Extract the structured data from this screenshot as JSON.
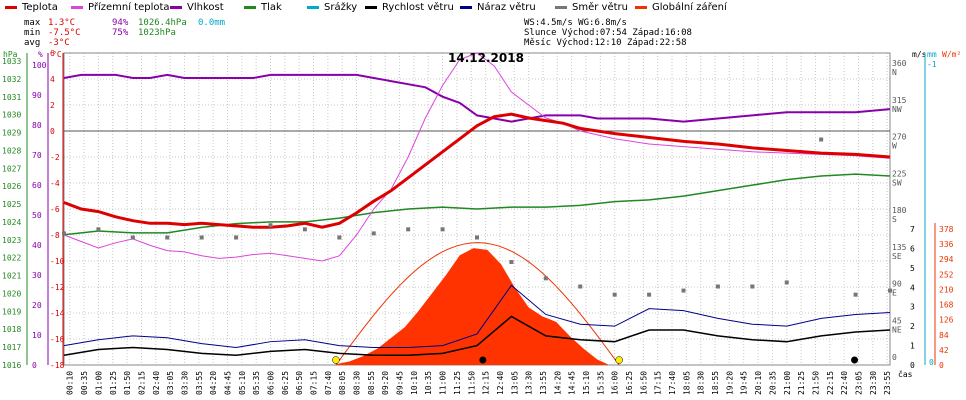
{
  "legend": [
    {
      "label": "Teplota",
      "color": "#dd0000"
    },
    {
      "label": "Přízemní teplota",
      "color": "#dd44dd"
    },
    {
      "label": "Vlhkost",
      "color": "#8800aa"
    },
    {
      "label": "Tlak",
      "color": "#228822"
    },
    {
      "label": "Srážky",
      "color": "#00aacc"
    },
    {
      "label": "Rychlost větru",
      "color": "#000000"
    },
    {
      "label": "Náraz větru",
      "color": "#000088"
    },
    {
      "label": "Směr větru",
      "color": "#777777"
    },
    {
      "label": "Globální záření",
      "color": "#ee3300"
    }
  ],
  "stats": {
    "max": {
      "label": "max",
      "temp": "1.3°C",
      "hum": "94%",
      "press": "1026.4hPa",
      "rain": "0.0mm"
    },
    "min": {
      "label": "min",
      "temp": "-7.5°C",
      "hum": "75%",
      "press": "1023hPa"
    },
    "avg": {
      "label": "avg",
      "temp": "-3°C"
    }
  },
  "sun": {
    "line1": "WS:4.5m/s   WG:6.8m/s",
    "line2": "Slunce Východ:07:54  Západ:16:08",
    "line3": "Měsíc  Východ:12:10  Západ:22:58"
  },
  "date": "14.12.2018",
  "axes": {
    "hpa_title": "hPa",
    "pct_title": "%",
    "c_title": "°C",
    "dir_title": "m/s",
    "mm_title": "mm",
    "wm_title": "W/m²",
    "hpa_ticks": [
      "1033",
      "1032",
      "1031",
      "1030",
      "1029",
      "1028",
      "1027",
      "1026",
      "1025",
      "1024",
      "1023",
      "1022",
      "1021",
      "1020",
      "1019",
      "1018",
      "1017",
      "1016"
    ],
    "pct_ticks": [
      "100",
      "90",
      "80",
      "70",
      "60",
      "50",
      "40",
      "30",
      "20",
      "10",
      "0"
    ],
    "c_ticks": [
      "6",
      "4",
      "2",
      "0",
      "-2",
      "-4",
      "-6",
      "-8",
      "-10",
      "-12",
      "-14",
      "-16",
      "-18"
    ],
    "dir_ticks": [
      {
        "deg": "360",
        "dir": "N"
      },
      {
        "deg": "315",
        "dir": "NW"
      },
      {
        "deg": "270",
        "dir": "W"
      },
      {
        "deg": "225",
        "dir": "SW"
      },
      {
        "deg": "180",
        "dir": "S"
      },
      {
        "deg": "135",
        "dir": "SE"
      },
      {
        "deg": "90",
        "dir": "E"
      },
      {
        "deg": "45",
        "dir": "NE"
      },
      {
        "deg": "0",
        "dir": ""
      }
    ],
    "mm_ticks": [
      "-1",
      "0"
    ],
    "ms_ticks": [
      "7",
      "6",
      "5",
      "4",
      "3",
      "2",
      "1",
      "0"
    ],
    "wm_ticks": [
      "378",
      "336",
      "294",
      "252",
      "210",
      "168",
      "126",
      "84",
      "42",
      "0"
    ],
    "time_label": "čas",
    "time_ticks": [
      "00:10",
      "00:35",
      "01:00",
      "01:25",
      "01:50",
      "02:15",
      "02:40",
      "03:05",
      "03:30",
      "03:55",
      "04:20",
      "04:45",
      "05:10",
      "05:35",
      "06:00",
      "06:25",
      "06:50",
      "07:15",
      "07:40",
      "08:05",
      "08:30",
      "08:55",
      "09:20",
      "09:45",
      "10:10",
      "10:35",
      "11:00",
      "11:25",
      "11:50",
      "12:15",
      "12:40",
      "13:05",
      "13:30",
      "13:55",
      "14:20",
      "14:45",
      "15:10",
      "15:35",
      "16:00",
      "16:25",
      "16:50",
      "17:15",
      "17:40",
      "18:05",
      "18:30",
      "18:55",
      "19:20",
      "19:45",
      "20:10",
      "20:35",
      "21:00",
      "21:25",
      "21:50",
      "22:15",
      "22:40",
      "23:05",
      "23:30",
      "23:55"
    ]
  },
  "chart_data": {
    "type": "line",
    "title": "14.12.2018",
    "x_unit": "čas (h)",
    "grid": true,
    "series": [
      {
        "name": "Teplota",
        "axis": "°C",
        "ylim": [
          -18,
          6
        ],
        "x": [
          0,
          0.5,
          1,
          1.5,
          2,
          2.5,
          3,
          3.5,
          4,
          4.5,
          5,
          5.5,
          6,
          6.5,
          7,
          7.5,
          8,
          8.5,
          9,
          9.5,
          10,
          10.5,
          11,
          11.5,
          12,
          12.5,
          13,
          13.5,
          14,
          14.5,
          15,
          15.5,
          16,
          17,
          18,
          19,
          20,
          21,
          22,
          23,
          24
        ],
        "y": [
          -5.5,
          -6,
          -6.2,
          -6.6,
          -6.9,
          -7.1,
          -7.1,
          -7.2,
          -7.1,
          -7.2,
          -7.3,
          -7.4,
          -7.4,
          -7.3,
          -7.1,
          -7.4,
          -7.1,
          -6.3,
          -5.4,
          -4.6,
          -3.6,
          -2.6,
          -1.6,
          -0.6,
          0.4,
          1.1,
          1.3,
          1.0,
          0.8,
          0.6,
          0.2,
          0,
          -0.2,
          -0.5,
          -0.8,
          -1.0,
          -1.3,
          -1.5,
          -1.7,
          -1.8,
          -2.0
        ]
      },
      {
        "name": "Přízemní teplota",
        "axis": "°C",
        "ylim": [
          -18,
          6
        ],
        "x": [
          0,
          0.5,
          1,
          1.5,
          2,
          2.5,
          3,
          3.5,
          4,
          4.5,
          5,
          5.5,
          6,
          6.5,
          7,
          7.5,
          8,
          8.5,
          9,
          9.5,
          10,
          10.5,
          11,
          11.5,
          12,
          12.5,
          13,
          13.5,
          14,
          14.5,
          15,
          15.5,
          16,
          17,
          18,
          19,
          20,
          21,
          22,
          23,
          24
        ],
        "y": [
          -8,
          -8.5,
          -9,
          -8.6,
          -8.3,
          -8.8,
          -9.2,
          -9.3,
          -9.6,
          -9.8,
          -9.7,
          -9.5,
          -9.4,
          -9.6,
          -9.8,
          -10,
          -9.6,
          -8,
          -6,
          -4.5,
          -2,
          1,
          3.5,
          5.5,
          6,
          5,
          3,
          2,
          1,
          0.6,
          0,
          -0.3,
          -0.6,
          -1,
          -1.2,
          -1.4,
          -1.6,
          -1.7,
          -1.8,
          -1.9,
          -2.1
        ]
      },
      {
        "name": "Vlhkost",
        "axis": "%",
        "ylim": [
          0,
          100
        ],
        "x": [
          0,
          0.5,
          1,
          1.5,
          2,
          2.5,
          3,
          3.5,
          4,
          4.5,
          5,
          5.5,
          6,
          6.5,
          7,
          7.5,
          8,
          8.5,
          9,
          9.5,
          10,
          10.5,
          11,
          11.5,
          12,
          12.5,
          13,
          13.5,
          14,
          14.5,
          15,
          15.5,
          16,
          17,
          18,
          19,
          20,
          21,
          22,
          23,
          24
        ],
        "y": [
          92,
          93,
          93,
          93,
          92,
          92,
          93,
          92,
          92,
          92,
          92,
          92,
          93,
          93,
          93,
          93,
          93,
          93,
          92,
          91,
          90,
          89,
          86,
          84,
          80,
          79,
          78,
          79,
          80,
          80,
          80,
          79,
          79,
          79,
          78,
          79,
          80,
          81,
          81,
          81,
          82
        ]
      },
      {
        "name": "Tlak",
        "axis": "hPa",
        "ylim": [
          1016,
          1033
        ],
        "x": [
          0,
          1,
          2,
          3,
          4,
          5,
          6,
          7,
          8,
          9,
          10,
          11,
          12,
          13,
          14,
          15,
          16,
          17,
          18,
          19,
          20,
          21,
          22,
          23,
          24
        ],
        "y": [
          1023.1,
          1023.3,
          1023.2,
          1023.2,
          1023.5,
          1023.7,
          1023.8,
          1023.8,
          1024,
          1024.3,
          1024.5,
          1024.6,
          1024.5,
          1024.6,
          1024.6,
          1024.7,
          1024.9,
          1025.0,
          1025.2,
          1025.5,
          1025.8,
          1026.1,
          1026.3,
          1026.4,
          1026.3
        ]
      },
      {
        "name": "Rychlost větru",
        "axis": "m/s",
        "ylim": [
          0,
          7
        ],
        "x": [
          0,
          1,
          2,
          3,
          4,
          5,
          6,
          7,
          8,
          9,
          10,
          11,
          12,
          13,
          14,
          15,
          16,
          17,
          18,
          19,
          20,
          21,
          22,
          23,
          24
        ],
        "y": [
          0.5,
          0.8,
          0.9,
          0.8,
          0.6,
          0.5,
          0.7,
          0.8,
          0.6,
          0.5,
          0.5,
          0.6,
          1.0,
          2.5,
          1.5,
          1.3,
          1.2,
          1.8,
          1.8,
          1.5,
          1.3,
          1.2,
          1.5,
          1.7,
          1.8
        ]
      },
      {
        "name": "Náraz větru",
        "axis": "m/s",
        "ylim": [
          0,
          7
        ],
        "x": [
          0,
          1,
          2,
          3,
          4,
          5,
          6,
          7,
          8,
          9,
          10,
          11,
          12,
          13,
          14,
          15,
          16,
          17,
          18,
          19,
          20,
          21,
          22,
          23,
          24
        ],
        "y": [
          1.0,
          1.3,
          1.5,
          1.4,
          1.1,
          0.9,
          1.2,
          1.3,
          1.0,
          0.9,
          0.9,
          1.0,
          1.6,
          4.1,
          2.6,
          2.1,
          2.0,
          2.9,
          2.8,
          2.4,
          2.1,
          2.0,
          2.4,
          2.6,
          2.7
        ]
      },
      {
        "name": "Směr větru",
        "axis": "°",
        "ylim": [
          0,
          360
        ],
        "x": [
          0,
          1,
          2,
          3,
          4,
          5,
          6,
          7,
          8,
          9,
          10,
          11,
          12,
          13,
          14,
          15,
          16,
          17,
          18,
          19,
          20,
          21,
          22,
          23,
          24
        ],
        "y": [
          155,
          160,
          150,
          150,
          150,
          150,
          165,
          160,
          150,
          155,
          160,
          160,
          150,
          120,
          100,
          90,
          80,
          80,
          85,
          90,
          90,
          95,
          270,
          80,
          85
        ]
      },
      {
        "name": "Globální záření",
        "axis": "W/m²",
        "ylim": [
          0,
          378
        ],
        "x": [
          7.9,
          8.3,
          8.7,
          9.1,
          9.5,
          9.9,
          10.3,
          10.7,
          11.1,
          11.5,
          11.9,
          12.3,
          12.7,
          13.1,
          13.5,
          13.9,
          14.3,
          14.7,
          15.1,
          15.5,
          15.8
        ],
        "y": [
          2,
          10,
          25,
          45,
          75,
          105,
          150,
          200,
          250,
          305,
          325,
          320,
          280,
          215,
          160,
          135,
          120,
          80,
          45,
          15,
          2
        ]
      },
      {
        "name": "Srážky",
        "axis": "mm",
        "ylim": [
          -1,
          0
        ],
        "x": [
          0,
          24
        ],
        "y": [
          0,
          0
        ]
      }
    ]
  }
}
